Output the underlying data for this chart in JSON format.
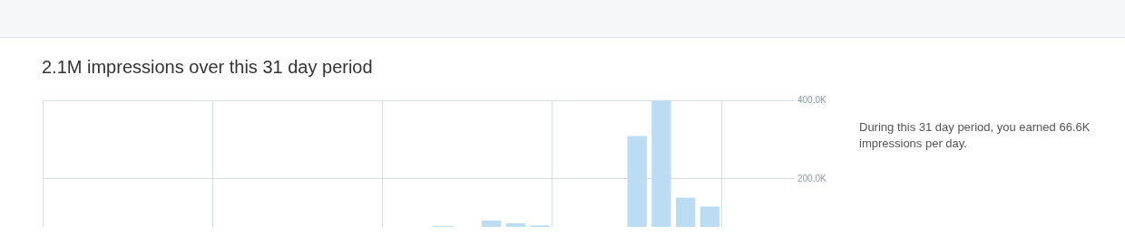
{
  "chart_data": {
    "type": "bar",
    "title": "2.1M impressions over this 31 day period",
    "annotations": [
      "During this 31 day period, you earned 66.6K impressions per day."
    ],
    "categories": [
      null,
      null,
      null,
      null,
      null,
      null,
      null,
      null,
      null,
      null,
      null,
      null,
      null,
      null,
      null,
      null,
      null,
      null,
      null,
      null,
      null,
      null,
      null,
      null,
      null,
      null,
      null,
      null,
      null,
      null,
      null
    ],
    "values": [
      null,
      null,
      null,
      null,
      null,
      null,
      null,
      null,
      null,
      null,
      null,
      null,
      null,
      null,
      null,
      null,
      80000,
      null,
      94000,
      87000,
      82000,
      null,
      null,
      null,
      309000,
      400000,
      152000,
      130000,
      null,
      null,
      null
    ],
    "color": "#bcdcf4",
    "ylim": [
      78000,
      400000
    ],
    "yticks": [
      {
        "value": 200000,
        "label": "200.0K"
      },
      {
        "value": 400000,
        "label": "400.0K"
      }
    ],
    "grid": true,
    "legend": false
  }
}
